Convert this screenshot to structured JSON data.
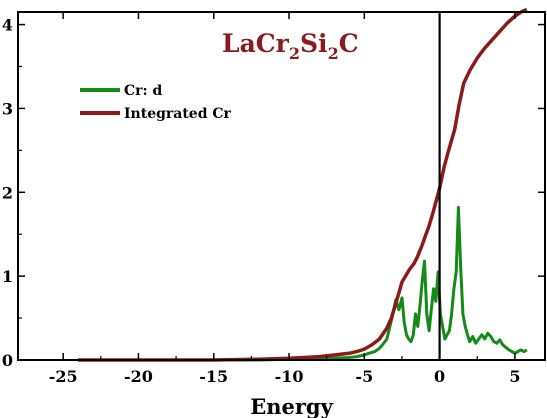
{
  "chart_data": {
    "type": "line",
    "title_parts": [
      {
        "text": "LaCr",
        "sub": false
      },
      {
        "text": "2",
        "sub": true
      },
      {
        "text": "Si",
        "sub": false
      },
      {
        "text": "2",
        "sub": true
      },
      {
        "text": "C",
        "sub": false
      }
    ],
    "title_color": "#8B1A1A",
    "xlabel": "Energy",
    "ylabel": "",
    "xlim": [
      -28,
      7
    ],
    "ylim": [
      0,
      4.15
    ],
    "xticks": [
      -25,
      -20,
      -15,
      -10,
      -5,
      0,
      5
    ],
    "yticks": [
      0,
      1,
      2,
      3,
      4
    ],
    "vline_x": 0,
    "legend_position": "top-left",
    "series": [
      {
        "name": "Cr: d",
        "color": "#168A16",
        "x": [
          -24,
          -20,
          -15,
          -12,
          -10,
          -8,
          -7,
          -6,
          -5.5,
          -5,
          -4.7,
          -4.3,
          -4,
          -3.8,
          -3.5,
          -3.3,
          -3.1,
          -2.9,
          -2.7,
          -2.5,
          -2.35,
          -2.2,
          -2.05,
          -1.9,
          -1.75,
          -1.6,
          -1.45,
          -1.3,
          -1.15,
          -1.0,
          -0.85,
          -0.7,
          -0.55,
          -0.4,
          -0.25,
          -0.1,
          0.05,
          0.2,
          0.35,
          0.5,
          0.65,
          0.8,
          0.95,
          1.1,
          1.25,
          1.4,
          1.55,
          1.7,
          1.85,
          2.0,
          2.2,
          2.4,
          2.6,
          2.8,
          3.0,
          3.2,
          3.4,
          3.6,
          3.8,
          4.0,
          4.2,
          4.4,
          4.6,
          4.8,
          5.0,
          5.2,
          5.4,
          5.6,
          5.8
        ],
        "values": [
          0.0,
          0.0,
          0.0,
          0.0,
          0.01,
          0.01,
          0.02,
          0.03,
          0.04,
          0.06,
          0.08,
          0.1,
          0.14,
          0.18,
          0.25,
          0.4,
          0.55,
          0.72,
          0.6,
          0.74,
          0.45,
          0.3,
          0.25,
          0.22,
          0.3,
          0.55,
          0.4,
          0.65,
          0.95,
          1.18,
          0.55,
          0.35,
          0.6,
          0.85,
          0.7,
          1.05,
          0.55,
          0.4,
          0.25,
          0.3,
          0.35,
          0.55,
          0.85,
          1.05,
          1.82,
          1.1,
          0.55,
          0.4,
          0.3,
          0.22,
          0.28,
          0.2,
          0.25,
          0.3,
          0.25,
          0.32,
          0.28,
          0.22,
          0.2,
          0.24,
          0.18,
          0.15,
          0.12,
          0.1,
          0.08,
          0.1,
          0.12,
          0.1,
          0.12
        ]
      },
      {
        "name": "Integrated Cr",
        "color": "#8B1A1A",
        "x": [
          -24,
          -20,
          -15,
          -12,
          -10,
          -9,
          -8,
          -7,
          -6,
          -5.5,
          -5,
          -4.5,
          -4,
          -3.5,
          -3.2,
          -3,
          -2.7,
          -2.5,
          -2.2,
          -2,
          -1.7,
          -1.5,
          -1.2,
          -1,
          -0.7,
          -0.5,
          -0.3,
          0,
          0.3,
          0.6,
          1,
          1.3,
          1.6,
          2,
          2.5,
          3,
          3.5,
          4,
          4.5,
          5,
          5.5,
          5.8
        ],
        "values": [
          0.0,
          0.0,
          0.0,
          0.01,
          0.02,
          0.03,
          0.04,
          0.06,
          0.08,
          0.1,
          0.13,
          0.18,
          0.25,
          0.38,
          0.5,
          0.62,
          0.8,
          0.93,
          1.02,
          1.08,
          1.15,
          1.22,
          1.35,
          1.45,
          1.6,
          1.72,
          1.85,
          2.05,
          2.3,
          2.5,
          2.75,
          3.05,
          3.3,
          3.45,
          3.6,
          3.72,
          3.82,
          3.92,
          4.02,
          4.1,
          4.16,
          4.18
        ]
      }
    ]
  }
}
